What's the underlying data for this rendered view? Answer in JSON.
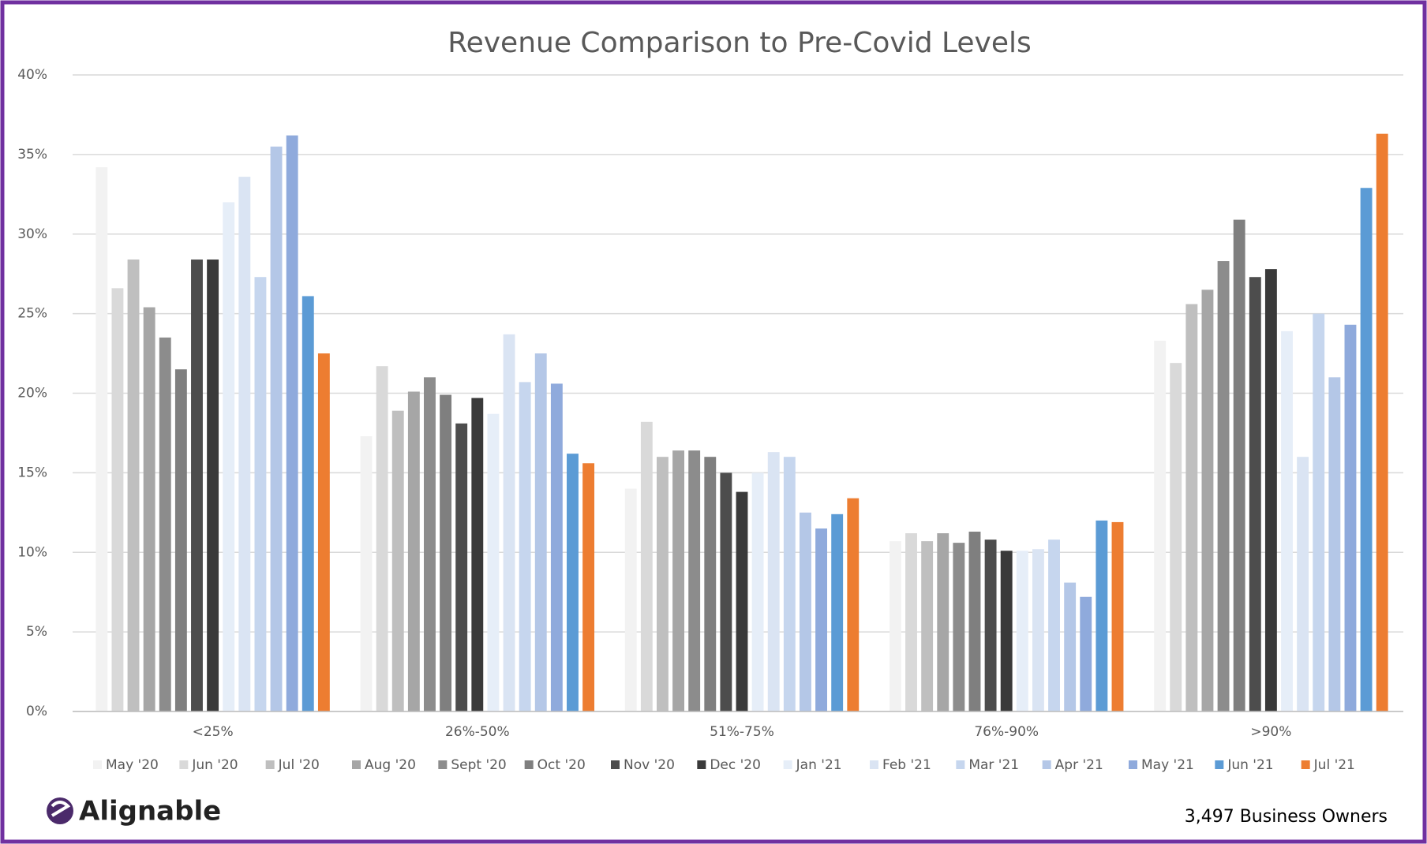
{
  "chart_data": {
    "type": "bar",
    "title": "Revenue Comparison to Pre-Covid Levels",
    "categories": [
      "<25%",
      "26%-50%",
      "51%-75%",
      "76%-90%",
      ">90%"
    ],
    "series": [
      {
        "name": "May '20",
        "color": "#f2f2f2",
        "values": [
          34.2,
          17.3,
          14.0,
          10.7,
          23.3
        ]
      },
      {
        "name": "Jun '20",
        "color": "#d9d9d9",
        "values": [
          26.6,
          21.7,
          18.2,
          11.2,
          21.9
        ]
      },
      {
        "name": "Jul '20",
        "color": "#bfbfbf",
        "values": [
          28.4,
          18.9,
          16.0,
          10.7,
          25.6
        ]
      },
      {
        "name": "Aug '20",
        "color": "#a6a6a6",
        "values": [
          25.4,
          20.1,
          16.4,
          11.2,
          26.5
        ]
      },
      {
        "name": "Sept '20",
        "color": "#8c8c8c",
        "values": [
          23.5,
          21.0,
          16.4,
          10.6,
          28.3
        ]
      },
      {
        "name": "Oct '20",
        "color": "#7f7f7f",
        "values": [
          21.5,
          19.9,
          16.0,
          11.3,
          30.9
        ]
      },
      {
        "name": "Nov '20",
        "color": "#4d4d4d",
        "values": [
          28.4,
          18.1,
          15.0,
          10.8,
          27.3
        ]
      },
      {
        "name": "Dec '20",
        "color": "#3a3a3a",
        "values": [
          28.4,
          19.7,
          13.8,
          10.1,
          27.8
        ]
      },
      {
        "name": "Jan '21",
        "color": "#e6eef8",
        "values": [
          32.0,
          18.7,
          15.0,
          10.1,
          23.9
        ]
      },
      {
        "name": "Feb '21",
        "color": "#dae4f3",
        "values": [
          33.6,
          23.7,
          16.3,
          10.2,
          16.0
        ]
      },
      {
        "name": "Mar '21",
        "color": "#c6d6ee",
        "values": [
          27.3,
          20.7,
          16.0,
          10.8,
          25.0
        ]
      },
      {
        "name": "Apr '21",
        "color": "#b4c7e7",
        "values": [
          35.5,
          22.5,
          12.5,
          8.1,
          21.0
        ]
      },
      {
        "name": "May '21",
        "color": "#8faadc",
        "values": [
          36.2,
          20.6,
          11.5,
          7.2,
          24.3
        ]
      },
      {
        "name": "Jun '21",
        "color": "#5b9bd5",
        "values": [
          26.1,
          16.2,
          12.4,
          12.0,
          32.9
        ]
      },
      {
        "name": "Jul '21",
        "color": "#ed7d31",
        "values": [
          22.5,
          15.6,
          13.4,
          11.9,
          36.3
        ]
      }
    ],
    "ylim": [
      0,
      40
    ],
    "yticks": [
      {
        "value": 0,
        "label": "0%"
      },
      {
        "value": 5,
        "label": "5%"
      },
      {
        "value": 10,
        "label": "10%"
      },
      {
        "value": 15,
        "label": "15%"
      },
      {
        "value": 20,
        "label": "20%"
      },
      {
        "value": 25,
        "label": "25%"
      },
      {
        "value": 30,
        "label": "30%"
      },
      {
        "value": 35,
        "label": "35%"
      },
      {
        "value": 40,
        "label": "40%"
      }
    ],
    "grid": true,
    "legend": "bottom",
    "logo": "Alignable",
    "note": "3,497 Business Owners"
  }
}
